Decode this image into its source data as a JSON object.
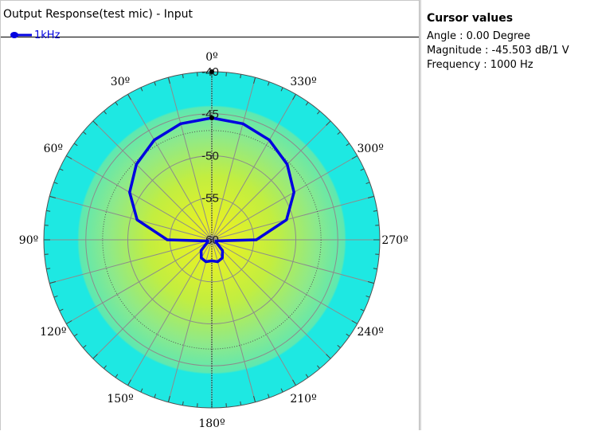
{
  "plot": {
    "title": "Output Response(test mic) - Input",
    "legend_label": "1kHz",
    "series_color": "#0000e0"
  },
  "cursor": {
    "heading": "Cursor values",
    "angle": "Angle :  0.00 Degree",
    "magnitude": "Magnitude : -45.503 dB/1 V",
    "frequency": "Frequency : 1000 Hz"
  },
  "chart_data": {
    "type": "polar",
    "title": "Output Response(test mic) - Input",
    "radial_labels": [
      "-40",
      "-45",
      "-50",
      "-55",
      "-60"
    ],
    "radial_range": [
      -60,
      -40
    ],
    "dashed_circle_value": -47,
    "angle_labels": [
      "0º",
      "30º",
      "60º",
      "90º",
      "120º",
      "150º",
      "180º",
      "210º",
      "240º",
      "270º",
      "300º",
      "330º"
    ],
    "angle_direction": "counterclockwise",
    "zero_angle": "top",
    "grid": true,
    "legend": [
      "1kHz"
    ],
    "series": [
      {
        "name": "1kHz",
        "color": "#0000e0",
        "angles": [
          0,
          15,
          30,
          45,
          60,
          75,
          90,
          105,
          120,
          135,
          150,
          165,
          180,
          195,
          210,
          225,
          240,
          255,
          270,
          285,
          300,
          315,
          330,
          345,
          360
        ],
        "values": [
          -45.5,
          -45.7,
          -46.3,
          -47.3,
          -48.7,
          -50.8,
          -54.7,
          -59.5,
          -59.4,
          -58.2,
          -57.5,
          -57.3,
          -57.5,
          -57.3,
          -57.5,
          -58.2,
          -59.4,
          -59.5,
          -54.7,
          -50.8,
          -48.7,
          -47.3,
          -46.3,
          -45.7,
          -45.5
        ]
      }
    ],
    "cursor_marker": {
      "angle": 0,
      "value": -45.503
    }
  },
  "colors": {
    "outer_ring": "#1ee8e2",
    "center": "#f4f21c",
    "mid": "#8ee98a",
    "grid": "#8c8c8c",
    "series": "#0000e0"
  }
}
